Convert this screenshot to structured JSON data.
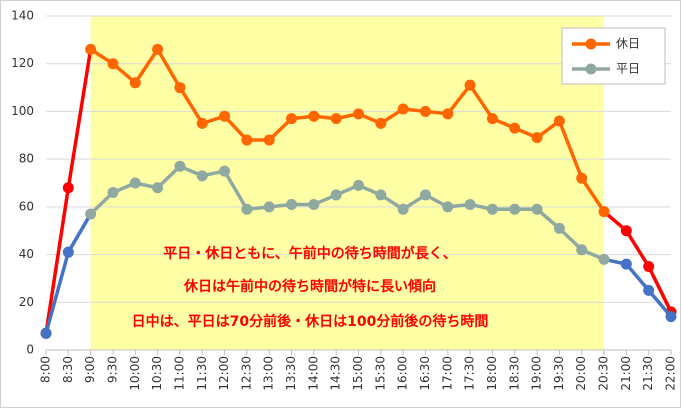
{
  "chart_data": {
    "type": "line",
    "categories": [
      "8:00",
      "8:30",
      "9:00",
      "9:30",
      "10:00",
      "10:30",
      "11:00",
      "11:30",
      "12:00",
      "12:30",
      "13:00",
      "13:30",
      "14:00",
      "14:30",
      "15:00",
      "15:30",
      "16:00",
      "16:30",
      "17:00",
      "17:30",
      "18:00",
      "18:30",
      "19:00",
      "19:30",
      "20:00",
      "20:30",
      "21:00",
      "21:30",
      "22:00"
    ],
    "series": [
      {
        "name": "休日",
        "color": "#ff6600",
        "outside_color": "#ff0000",
        "values": [
          7,
          68,
          126,
          120,
          112,
          126,
          110,
          95,
          98,
          88,
          88,
          97,
          98,
          97,
          99,
          95,
          101,
          100,
          99,
          111,
          97,
          93,
          89,
          96,
          72,
          58,
          50,
          35,
          16
        ]
      },
      {
        "name": "平日",
        "color": "#8fa8a0",
        "outside_color": "#4472c4",
        "values": [
          7,
          41,
          57,
          66,
          70,
          68,
          77,
          73,
          75,
          59,
          60,
          61,
          61,
          65,
          69,
          65,
          59,
          65,
          60,
          61,
          59,
          59,
          59,
          51,
          42,
          38,
          36,
          25,
          14
        ]
      }
    ],
    "highlight": {
      "from": "9:00",
      "to": "20:30",
      "color": "#ffffa6"
    },
    "annotations": [
      "平日・休日ともに、午前中の待ち時間が長く、",
      "休日は午前中の待ち時間が特に長い傾向",
      "日中は、平日は70分前後・休日は100分前後の待ち時間"
    ],
    "ylim": [
      0,
      140
    ],
    "yticks": [
      0,
      20,
      40,
      60,
      80,
      100,
      120,
      140
    ],
    "grid": true,
    "legend": "top-right"
  }
}
